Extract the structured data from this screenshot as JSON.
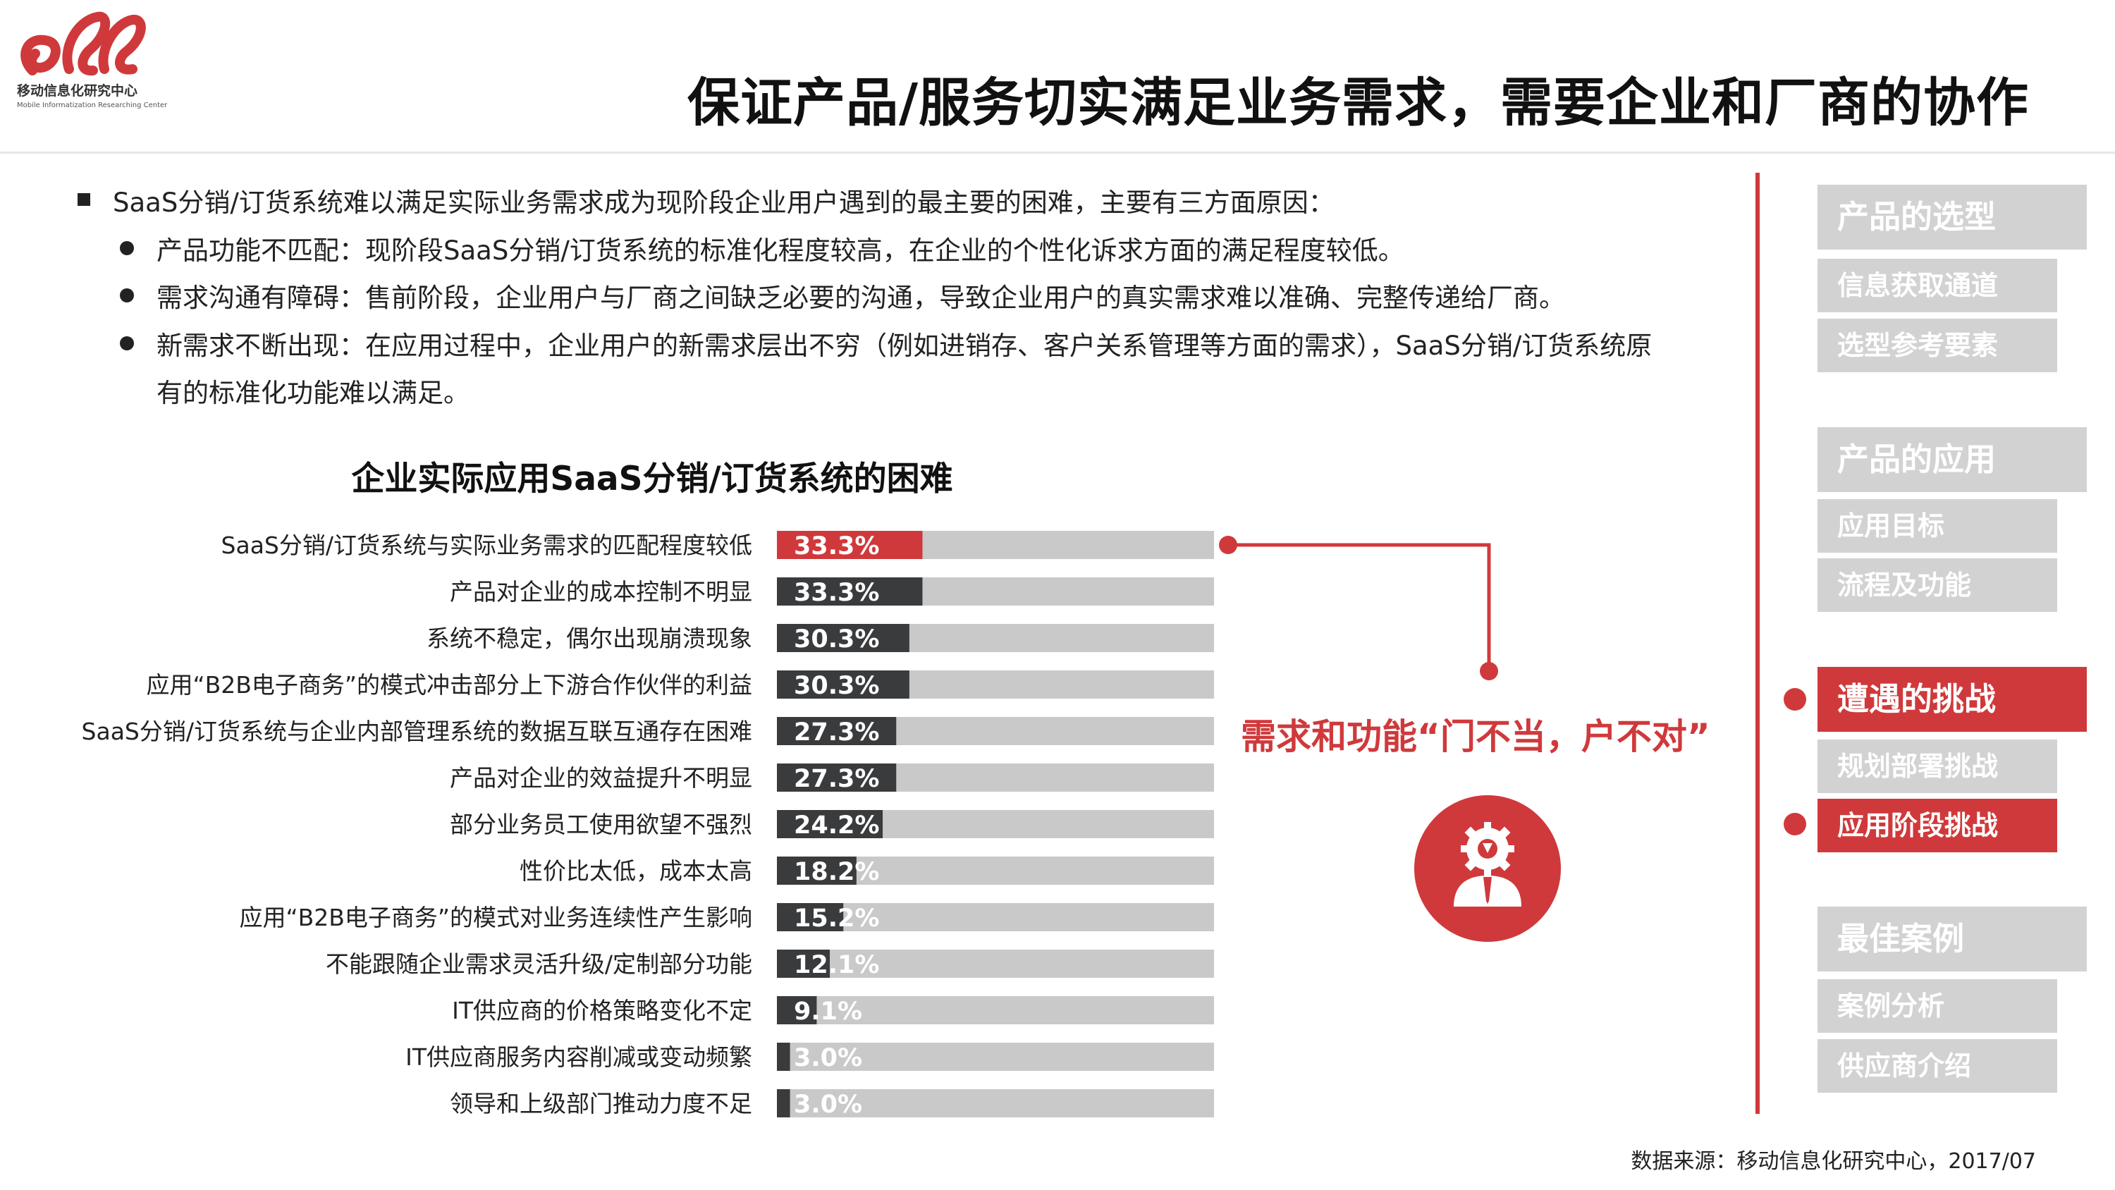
{
  "brand": {
    "org_name": "移动信息化研究中心",
    "org_name_en": "Mobile Informatization Researching Center",
    "logo_color": "#d0393b"
  },
  "title": "保证产品/服务切实满足业务需求，需要企业和厂商的协作",
  "intro": {
    "lead": "SaaS分销/订货系统难以满足实际业务需求成为现阶段企业用户遇到的最主要的困难，主要有三方面原因：",
    "bullets": [
      "产品功能不匹配：现阶段SaaS分销/订货系统的标准化程度较高，在企业的个性化诉求方面的满足程度较低。",
      "需求沟通有障碍：售前阶段，企业用户与厂商之间缺乏必要的沟通，导致企业用户的真实需求难以准确、完整传递给厂商。",
      "新需求不断出现：在应用过程中，企业用户的新需求层出不穷（例如进销存、客户关系管理等方面的需求），SaaS分销/订货系统原"
    ],
    "bullet_continuation": "有的标准化功能难以满足。"
  },
  "chart_data": {
    "type": "bar",
    "orientation": "horizontal",
    "title": "企业实际应用SaaS分销/订货系统的困难",
    "categories": [
      "SaaS分销/订货系统与实际业务需求的匹配程度较低",
      "产品对企业的成本控制不明显",
      "系统不稳定，偶尔出现崩溃现象",
      "应用“B2B电子商务”的模式冲击部分上下游合作伙伴的利益",
      "SaaS分销/订货系统与企业内部管理系统的数据互联互通存在困难",
      "产品对企业的效益提升不明显",
      "部分业务员工使用欲望不强烈",
      "性价比太低，成本太高",
      "应用“B2B电子商务”的模式对业务连续性产生影响",
      "不能跟随企业需求灵活升级/定制部分功能",
      "IT供应商的价格策略变化不定",
      "IT供应商服务内容削减或变动频繁",
      "领导和上级部门推动力度不足"
    ],
    "values": [
      33.3,
      33.3,
      30.3,
      30.3,
      27.3,
      27.3,
      24.2,
      18.2,
      15.2,
      12.1,
      9.1,
      3.0,
      3.0
    ],
    "value_labels": [
      "33.3%",
      "33.3%",
      "30.3%",
      "30.3%",
      "27.3%",
      "27.3%",
      "24.2%",
      "18.2%",
      "15.2%",
      "12.1%",
      "9.1%",
      "3.0%",
      "3.0%"
    ],
    "xlim": [
      0,
      100
    ],
    "highlight_index": 0,
    "colors": {
      "highlight": "#d0393b",
      "bar": "#3a3b3d",
      "track": "#c9c9c9"
    }
  },
  "callout": {
    "text": "需求和功能“门不当，户不对”",
    "icon": "gear-person-icon"
  },
  "nav": {
    "sections": [
      {
        "title": "产品的选型",
        "items": [
          "信息获取通道",
          "选型参考要素"
        ]
      },
      {
        "title": "产品的应用",
        "items": [
          "应用目标",
          "流程及功能"
        ]
      },
      {
        "title": "遭遇的挑战",
        "items": [
          "规划部署挑战",
          "应用阶段挑战"
        ]
      },
      {
        "title": "最佳案例",
        "items": [
          "案例分析",
          "供应商介绍"
        ]
      }
    ],
    "active_section": "遭遇的挑战",
    "active_item": "应用阶段挑战"
  },
  "source": "数据来源：移动信息化研究中心，2017/07"
}
